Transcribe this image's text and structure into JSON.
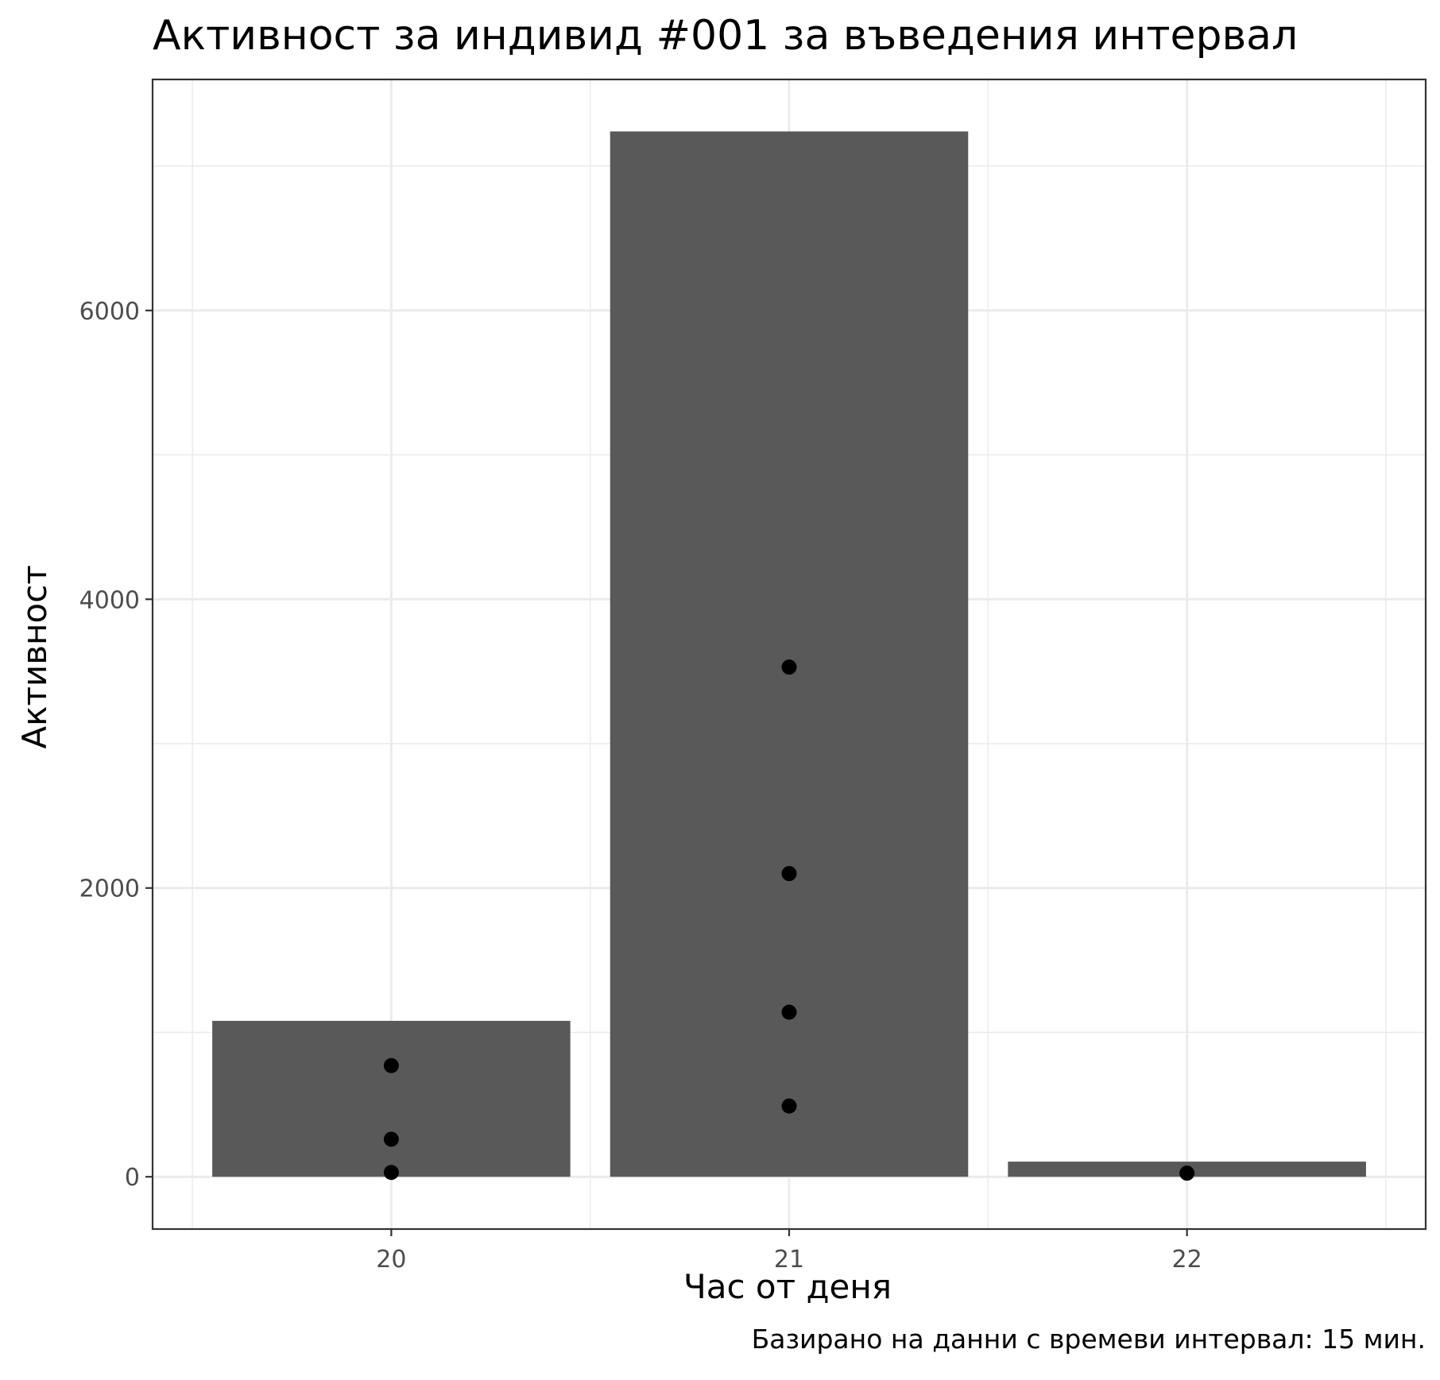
{
  "chart_data": {
    "type": "bar",
    "title": "Активност за индивид #001 за въведения интервал",
    "xlabel": "Час от деня",
    "ylabel": "Активност",
    "caption": "Базирано на данни с времеви интервал:  15 мин.",
    "categories": [
      "20",
      "21",
      "22"
    ],
    "values": [
      1080,
      7240,
      105
    ],
    "points": [
      {
        "x": "20",
        "y": 770
      },
      {
        "x": "20",
        "y": 260
      },
      {
        "x": "20",
        "y": 30
      },
      {
        "x": "21",
        "y": 3530
      },
      {
        "x": "21",
        "y": 2100
      },
      {
        "x": "21",
        "y": 1140
      },
      {
        "x": "21",
        "y": 490
      },
      {
        "x": "22",
        "y": 25
      }
    ],
    "yticks": [
      0,
      2000,
      4000,
      6000
    ],
    "ylim": [
      -362,
      7600
    ],
    "grid": true,
    "colors": {
      "bar": "#595959",
      "point": "#000000",
      "grid": "#ebebeb",
      "panel_border": "#333333"
    }
  }
}
